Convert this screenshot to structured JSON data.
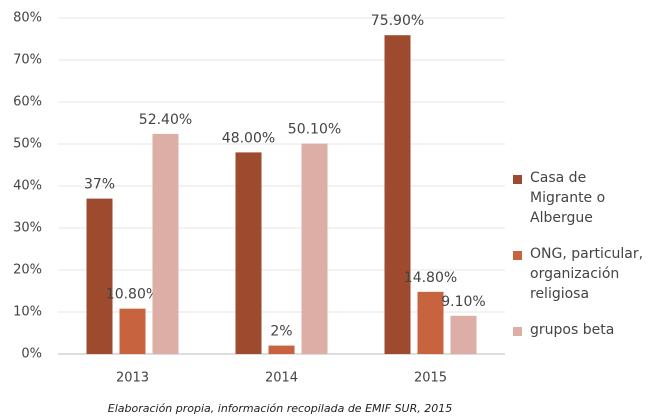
{
  "chart_data": {
    "type": "bar",
    "categories": [
      "2013",
      "2014",
      "2015"
    ],
    "series": [
      {
        "name": "Casa de Migrante o Albergue",
        "color": "#9d4a2e",
        "values": [
          37,
          48,
          75.9
        ],
        "value_labels": [
          "37%",
          "48.00%",
          "75.90%"
        ]
      },
      {
        "name": "ONG, particular, organización religiosa",
        "color": "#c7643f",
        "values": [
          10.8,
          2,
          14.8
        ],
        "value_labels": [
          "10.80%",
          "2%",
          "14.80%"
        ]
      },
      {
        "name": "grupos beta",
        "color": "#dcaea5",
        "values": [
          52.4,
          50.1,
          9.1
        ],
        "value_labels": [
          "52.40%",
          "50.10%",
          "9.10%"
        ]
      }
    ],
    "ylim": [
      0,
      80
    ],
    "yticks": [
      {
        "value": 0,
        "label": "0%"
      },
      {
        "value": 10,
        "label": "10%"
      },
      {
        "value": 20,
        "label": "20%"
      },
      {
        "value": 30,
        "label": "30%"
      },
      {
        "value": 40,
        "label": "40%"
      },
      {
        "value": 50,
        "label": "50%"
      },
      {
        "value": 60,
        "label": "60%"
      },
      {
        "value": 70,
        "label": "70%"
      },
      {
        "value": 80,
        "label": "80%"
      }
    ],
    "grid": true,
    "legend": "right",
    "caption": "Elaboración propia, información recopilada de EMIF SUR, 2015"
  }
}
